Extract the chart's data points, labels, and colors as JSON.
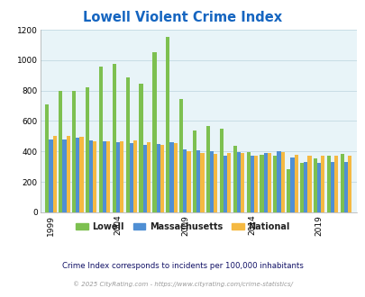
{
  "title": "Lowell Violent Crime Index",
  "title_color": "#1565C0",
  "subtitle": "Crime Index corresponds to incidents per 100,000 inhabitants",
  "footer": "© 2025 CityRating.com - https://www.cityrating.com/crime-statistics/",
  "plot_bg_color": "#e8f4f8",
  "years": [
    1999,
    2000,
    2001,
    2002,
    2003,
    2004,
    2005,
    2006,
    2007,
    2008,
    2009,
    2010,
    2011,
    2012,
    2013,
    2014,
    2015,
    2016,
    2017,
    2018,
    2019,
    2020,
    2021
  ],
  "lowell": [
    710,
    800,
    795,
    820,
    955,
    975,
    885,
    845,
    1050,
    1155,
    745,
    540,
    570,
    550,
    435,
    395,
    380,
    375,
    285,
    325,
    355,
    375,
    385
  ],
  "massachusetts": [
    480,
    480,
    490,
    470,
    465,
    460,
    455,
    445,
    450,
    460,
    415,
    410,
    400,
    375,
    395,
    370,
    390,
    400,
    360,
    330,
    325,
    330,
    330
  ],
  "national": [
    505,
    500,
    495,
    465,
    465,
    465,
    470,
    460,
    445,
    455,
    400,
    390,
    385,
    390,
    390,
    370,
    390,
    395,
    380,
    370,
    370,
    375,
    375
  ],
  "lowell_color": "#7dc050",
  "mass_color": "#4f8fd4",
  "national_color": "#f5b942",
  "ylim": [
    0,
    1200
  ],
  "yticks": [
    0,
    200,
    400,
    600,
    800,
    1000,
    1200
  ],
  "xtick_years": [
    1999,
    2004,
    2009,
    2014,
    2019
  ],
  "bar_width": 0.28,
  "grid_color": "#c8dde5"
}
